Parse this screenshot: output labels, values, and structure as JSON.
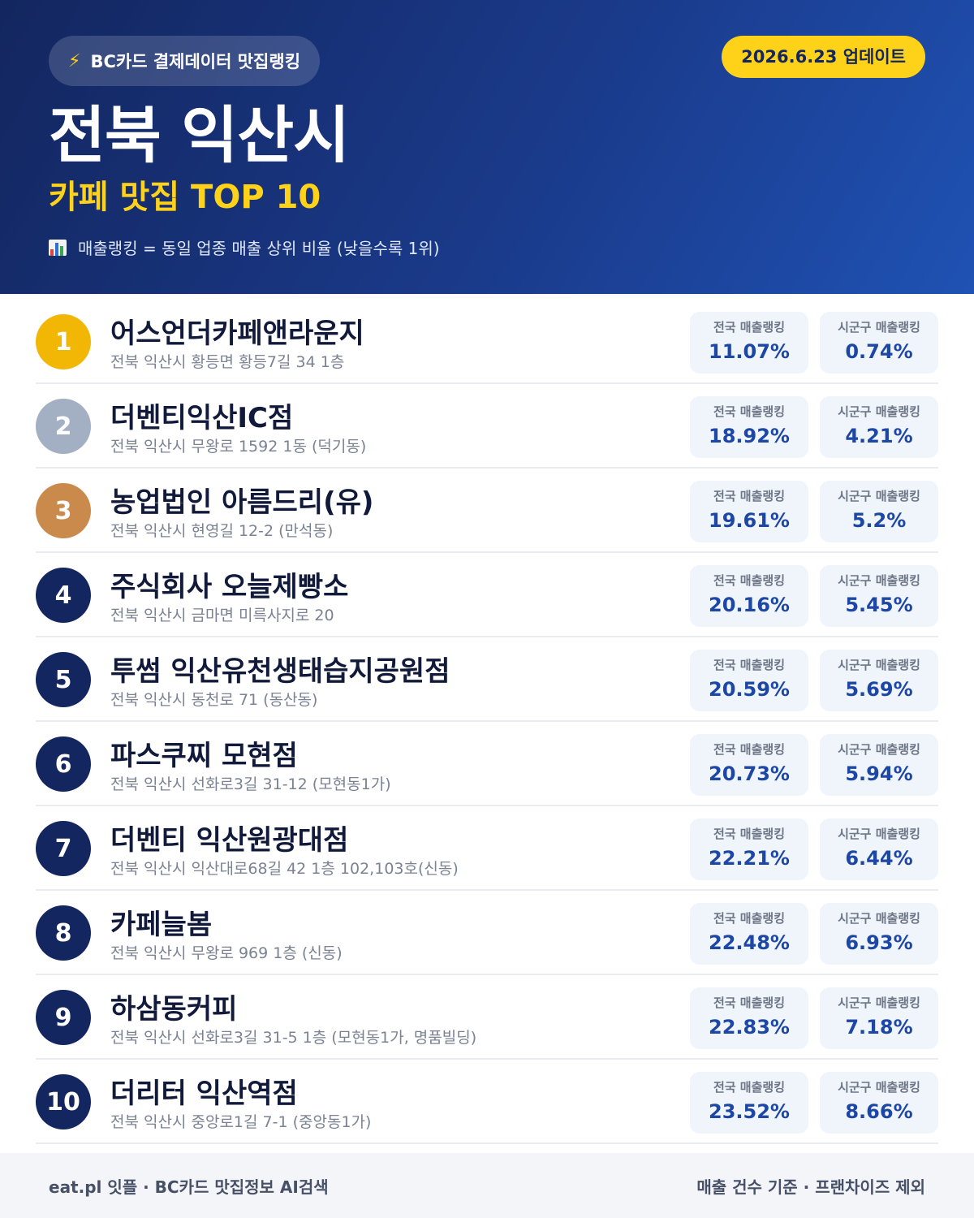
{
  "header": {
    "badge_icon": "lightning-icon",
    "badge": "BC카드 결제데이터 맛집랭킹",
    "update": "2026.6.23 업데이트",
    "title": "전북 익산시",
    "subtitle": "카페 맛집 TOP 10",
    "note_icon": "bar-chart-icon",
    "note": "매출랭킹 = 동일 업종 매출 상위 비율 (낮을수록 1위)"
  },
  "labels": {
    "national": "전국 매출랭킹",
    "local": "시군구 매출랭킹"
  },
  "colors": {
    "gold": "#f2b705",
    "silver": "#a3afc2",
    "bronze": "#c98a4b",
    "navy": "#13265f",
    "accent": "#ffd21a",
    "value": "#1d47a6"
  },
  "items": [
    {
      "rank": "1",
      "name": "어스언더카페앤라운지",
      "address": "전북 익산시 황등면 황등7길 34 1층",
      "national": "11.07%",
      "local": "0.74%"
    },
    {
      "rank": "2",
      "name": "더벤티익산IC점",
      "address": "전북 익산시 무왕로 1592 1동 (덕기동)",
      "national": "18.92%",
      "local": "4.21%"
    },
    {
      "rank": "3",
      "name": "농업법인 아름드리(유)",
      "address": "전북 익산시 현영길 12-2 (만석동)",
      "national": "19.61%",
      "local": "5.2%"
    },
    {
      "rank": "4",
      "name": "주식회사 오늘제빵소",
      "address": "전북 익산시 금마면 미륵사지로 20",
      "national": "20.16%",
      "local": "5.45%"
    },
    {
      "rank": "5",
      "name": "투썸 익산유천생태습지공원점",
      "address": "전북 익산시 동천로 71 (동산동)",
      "national": "20.59%",
      "local": "5.69%"
    },
    {
      "rank": "6",
      "name": "파스쿠찌 모현점",
      "address": "전북 익산시 선화로3길 31-12 (모현동1가)",
      "national": "20.73%",
      "local": "5.94%"
    },
    {
      "rank": "7",
      "name": "더벤티 익산원광대점",
      "address": "전북 익산시 익산대로68길 42 1층 102,103호(신동)",
      "national": "22.21%",
      "local": "6.44%"
    },
    {
      "rank": "8",
      "name": "카페늘봄",
      "address": "전북 익산시 무왕로 969 1층 (신동)",
      "national": "22.48%",
      "local": "6.93%"
    },
    {
      "rank": "9",
      "name": "하삼동커피",
      "address": "전북 익산시 선화로3길 31-5 1층 (모현동1가, 명품빌딩)",
      "national": "22.83%",
      "local": "7.18%"
    },
    {
      "rank": "10",
      "name": "더리터 익산역점",
      "address": "전북 익산시 중앙로1길 7-1 (중앙동1가)",
      "national": "23.52%",
      "local": "8.66%"
    }
  ],
  "footer": {
    "left": "eat.pl 잇플 · BC카드 맛집정보 AI검색",
    "right": "매출 건수 기준 · 프랜차이즈 제외"
  }
}
